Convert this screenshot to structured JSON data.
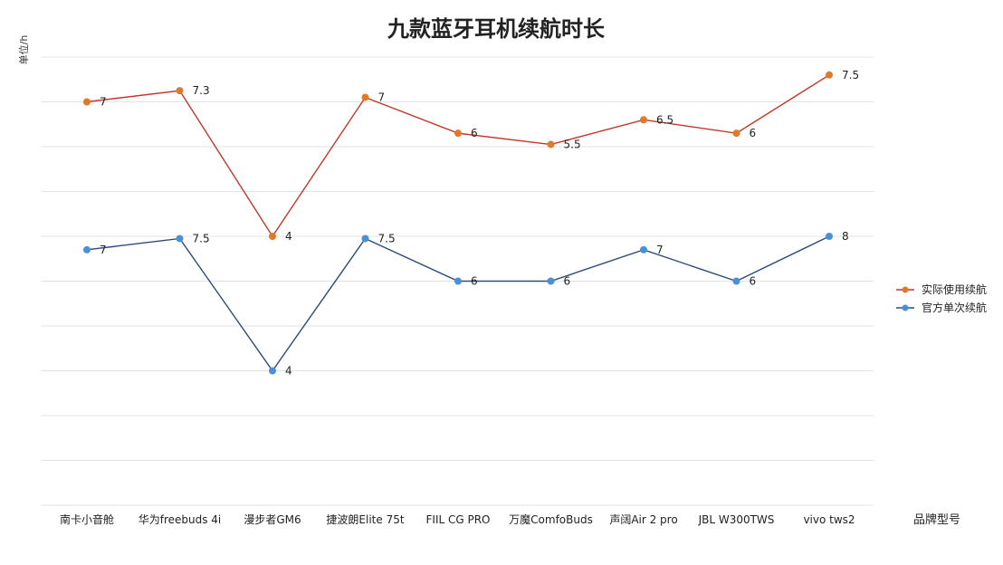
{
  "chart_data": {
    "type": "line",
    "title": "九款蓝牙耳机续航时长",
    "ylabel": "单位/h",
    "xlabel": "品牌型号",
    "categories": [
      "南卡小音舱",
      "华为freebuds 4i",
      "漫步者GM6",
      "捷波朗Elite 75t",
      "FIIL CG PRO",
      "万魔ComfoBuds",
      "声阔Air 2 pro",
      "JBL W300TWS",
      "vivo tws2"
    ],
    "series": [
      {
        "name": "实际使用续航",
        "color": "#e07a2a",
        "line_color": "#c0392b",
        "values": [
          7,
          7.3,
          4,
          7,
          6,
          5.5,
          6.5,
          6,
          7.5
        ],
        "labels": [
          "7",
          "7.3",
          "4",
          "7",
          "6",
          "5.5",
          "6.5",
          "6",
          "7.5"
        ],
        "plot_values": [
          8.0,
          8.25,
          5.0,
          8.1,
          7.3,
          7.05,
          7.6,
          7.3,
          8.6
        ]
      },
      {
        "name": "官方单次续航",
        "color": "#4a90d9",
        "line_color": "#2c4a7a",
        "values": [
          7,
          7.5,
          4,
          7.5,
          6,
          6,
          7,
          6,
          8
        ],
        "labels": [
          "7",
          "7.5",
          "4",
          "7.5",
          "6",
          "6",
          "7",
          "6",
          "8"
        ],
        "plot_values": [
          4.7,
          4.95,
          2.0,
          4.95,
          4.0,
          4.0,
          4.7,
          4.0,
          5.0
        ]
      }
    ],
    "ylim": [
      -1,
      9
    ],
    "grid": true,
    "legend": "right"
  }
}
